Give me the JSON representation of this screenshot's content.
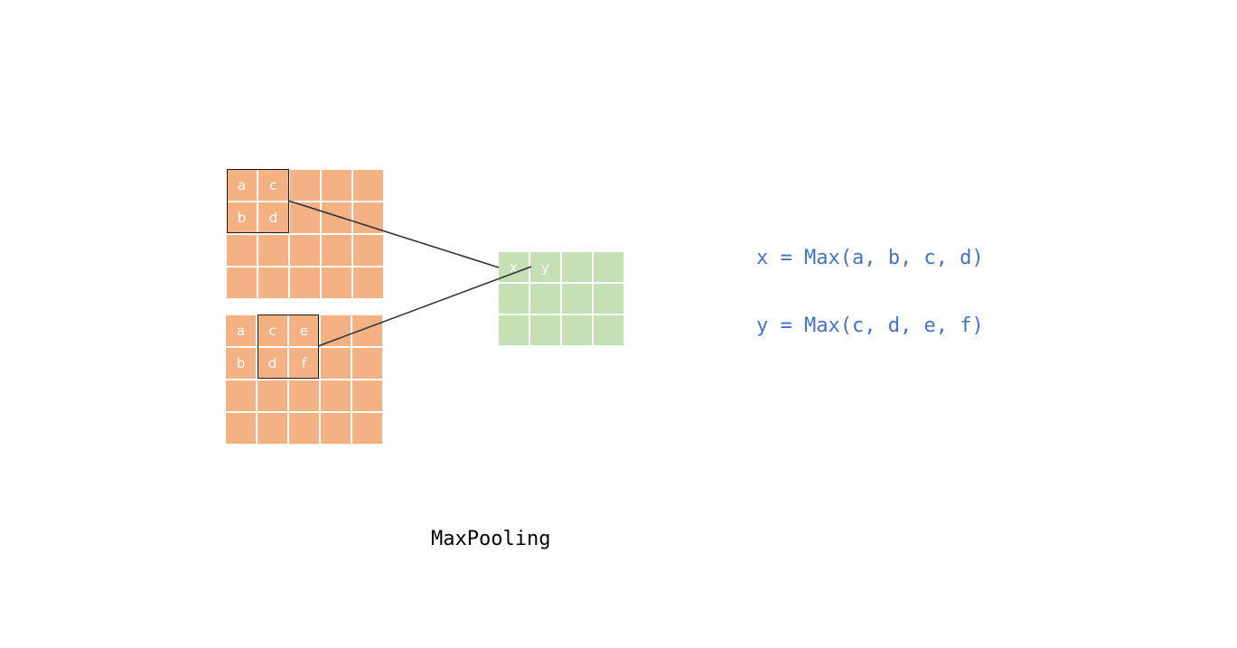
{
  "input_top": {
    "cells": [
      [
        "a",
        "c",
        "",
        "",
        ""
      ],
      [
        "b",
        "d",
        "",
        "",
        ""
      ],
      [
        "",
        "",
        "",
        "",
        ""
      ],
      [
        "",
        "",
        "",
        "",
        ""
      ]
    ]
  },
  "input_bottom": {
    "cells": [
      [
        "a",
        "c",
        "e",
        "",
        ""
      ],
      [
        "b",
        "d",
        "f",
        "",
        ""
      ],
      [
        "",
        "",
        "",
        "",
        ""
      ],
      [
        "",
        "",
        "",
        "",
        ""
      ]
    ]
  },
  "output": {
    "cells": [
      [
        "x",
        "y",
        "",
        ""
      ],
      [
        "",
        "",
        "",
        ""
      ],
      [
        "",
        "",
        "",
        ""
      ]
    ]
  },
  "formulas": {
    "x": "x = Max(a, b, c, d)",
    "y": "y = Max(c, d, e, f)"
  },
  "caption": "MaxPooling",
  "colors": {
    "input_cell": "#f4b183",
    "output_cell": "#c5e0b4",
    "formula_text": "#4472c4",
    "connector": "#333333"
  }
}
